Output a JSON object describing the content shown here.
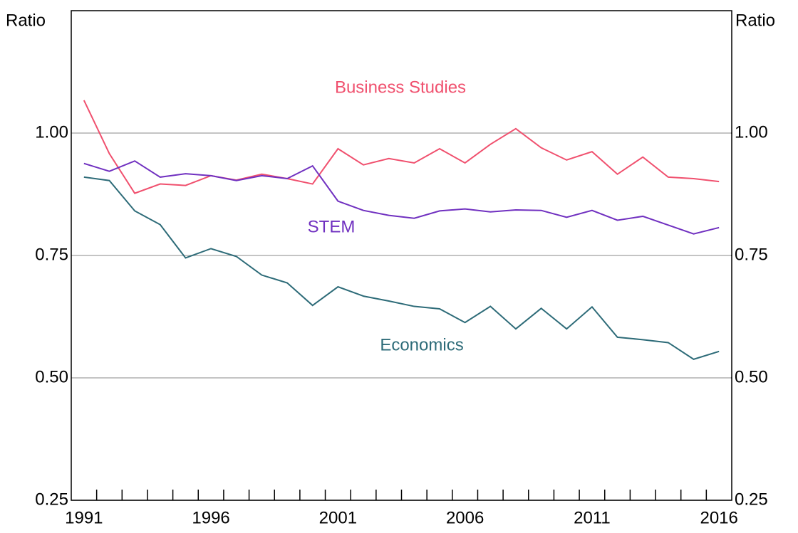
{
  "chart_data": {
    "type": "line",
    "ylabel": "Ratio",
    "y2label": "Ratio",
    "x": [
      1991,
      1992,
      1993,
      1994,
      1995,
      1996,
      1997,
      1998,
      1999,
      2000,
      2001,
      2002,
      2003,
      2004,
      2005,
      2006,
      2007,
      2008,
      2009,
      2010,
      2011,
      2012,
      2013,
      2014,
      2015,
      2016
    ],
    "series": [
      {
        "name": "Business Studies",
        "color": "#f0506e",
        "values": [
          1.067,
          0.958,
          0.877,
          0.896,
          0.893,
          0.913,
          0.904,
          0.916,
          0.907,
          0.896,
          0.968,
          0.935,
          0.948,
          0.939,
          0.968,
          0.939,
          0.977,
          1.009,
          0.97,
          0.945,
          0.962,
          0.916,
          0.951,
          0.91,
          0.907,
          0.901
        ]
      },
      {
        "name": "STEM",
        "color": "#7030c0",
        "values": [
          0.938,
          0.922,
          0.943,
          0.91,
          0.917,
          0.913,
          0.903,
          0.913,
          0.907,
          0.933,
          0.861,
          0.842,
          0.832,
          0.826,
          0.841,
          0.845,
          0.839,
          0.843,
          0.842,
          0.828,
          0.842,
          0.822,
          0.83,
          0.812,
          0.794,
          0.807
        ]
      },
      {
        "name": "Economics",
        "color": "#2d6b78",
        "values": [
          0.91,
          0.903,
          0.841,
          0.813,
          0.745,
          0.764,
          0.748,
          0.71,
          0.694,
          0.648,
          0.686,
          0.667,
          0.657,
          0.646,
          0.641,
          0.613,
          0.646,
          0.6,
          0.642,
          0.6,
          0.645,
          0.583,
          0.578,
          0.572,
          0.538,
          0.554
        ]
      }
    ],
    "xlim": [
      1990.5,
      2016.5
    ],
    "xticks": [
      1991,
      1996,
      2001,
      2006,
      2011,
      2016
    ],
    "xminor_ticks": [
      1991.5,
      1992.5,
      1993.5,
      1994.5,
      1995.5,
      1996.5,
      1997.5,
      1998.5,
      1999.5,
      2000.5,
      2001.5,
      2002.5,
      2003.5,
      2004.5,
      2005.5,
      2006.5,
      2007.5,
      2008.5,
      2009.5,
      2010.5,
      2011.5,
      2012.5,
      2013.5,
      2014.5,
      2015.5
    ],
    "ylim": [
      0.25,
      1.25
    ],
    "yticks": [
      0.25,
      {
        "value": 0.5,
        "label": "0.50"
      },
      0.75,
      {
        "value": 1,
        "label": "1.00"
      }
    ],
    "y2lim": [
      0.25,
      1.25
    ],
    "y2ticks": [
      0.25,
      {
        "value": 0.5,
        "label": "0.50"
      },
      0.75,
      {
        "value": 1,
        "label": "1.00"
      }
    ],
    "grid": true
  }
}
